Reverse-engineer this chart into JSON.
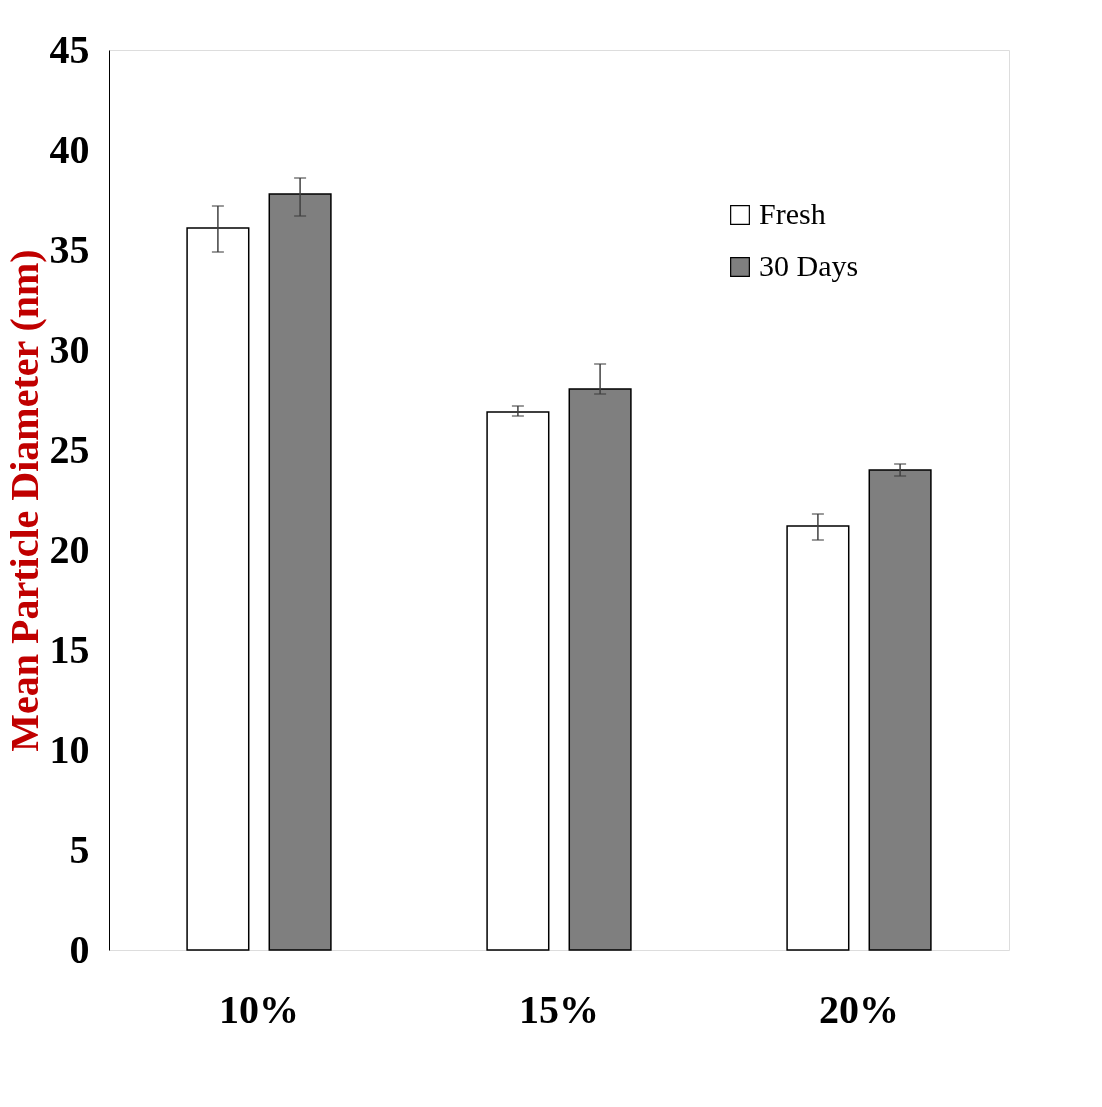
{
  "chart_data": {
    "type": "bar",
    "ylabel": "Mean Particle Diameter (nm)",
    "categories": [
      "10%",
      "15%",
      "20%"
    ],
    "series": [
      {
        "name": "Fresh",
        "color": "#ffffff",
        "values": [
          36.1,
          26.9,
          21.2
        ],
        "errors": [
          [
            34.9,
            37.2
          ],
          [
            26.7,
            27.2
          ],
          [
            20.5,
            21.8
          ]
        ]
      },
      {
        "name": "30 Days",
        "color": "#7f7f7f",
        "values": [
          37.8,
          28.05,
          24.0
        ],
        "errors": [
          [
            36.7,
            38.6
          ],
          [
            27.8,
            29.3
          ],
          [
            23.7,
            24.3
          ]
        ]
      }
    ],
    "ylim": [
      0,
      45
    ],
    "yticks": [
      0,
      5,
      10,
      15,
      20,
      25,
      30,
      35,
      40,
      45
    ],
    "grid": false,
    "legend": "top right"
  }
}
